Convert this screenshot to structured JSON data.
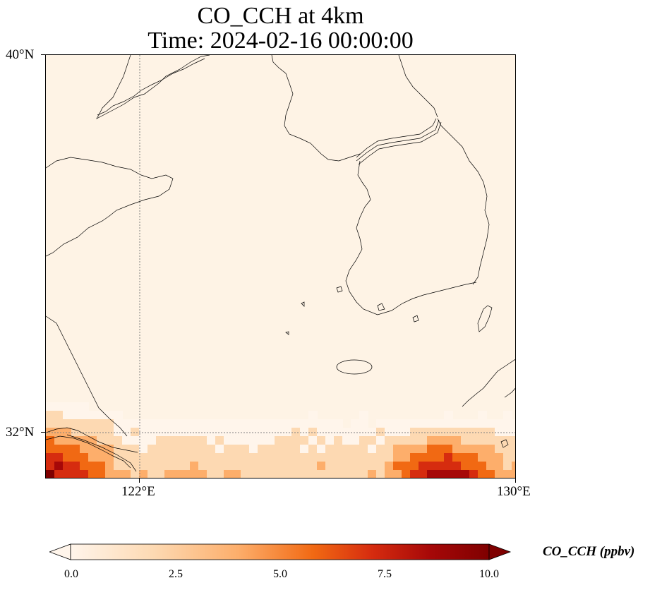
{
  "title": {
    "line1": "CO_CCH at 4km",
    "line2": "Time: 2024-02-16 00:00:00"
  },
  "map": {
    "lat_labels": [
      "40°N",
      "32°N"
    ],
    "lon_labels": [
      "122°E",
      "130°E"
    ],
    "extent": {
      "lon_min": 120,
      "lon_max": 130,
      "lat_min": 31,
      "lat_max": 40
    },
    "gridlines": {
      "lon": 122,
      "lat": 32,
      "style": "dotted"
    },
    "base_color": "#fef3e5",
    "high_concentration_region": "southern edge, strongest south of Korea near 127-129°E"
  },
  "colorbar": {
    "label": "CO_CCH (ppbv)",
    "ticks": [
      "0.0",
      "2.5",
      "5.0",
      "7.5",
      "10.0"
    ],
    "range": [
      0,
      10
    ],
    "extend": "both",
    "colormap": [
      "#fff5eb",
      "#fdd9b2",
      "#fdae6b",
      "#f16913",
      "#d62c0f",
      "#a60808",
      "#7f0000"
    ]
  }
}
